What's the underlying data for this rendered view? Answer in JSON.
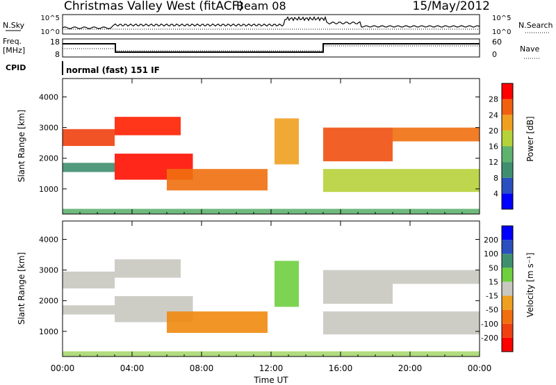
{
  "header": {
    "station": "Christmas Valley West (fitACF)",
    "beam": "Beam 08",
    "date": "15/May/2012"
  },
  "status_panels": {
    "nsky_label": "N.Sky",
    "nsky_ticks": [
      "10^5",
      "10^0"
    ],
    "nsearch_label": "N.Search",
    "nsearch_ticks": [
      "10^5",
      "10^0"
    ],
    "freq_label": "Freq.",
    "freq_unit": "[MHz]",
    "freq_ticks": [
      "18",
      "8"
    ],
    "nave_label": "Nave",
    "nave_ticks": [
      "60",
      "0"
    ],
    "cpid_label": "CPID",
    "cpid_value": "normal (fast) 151 IF"
  },
  "chart_data": [
    {
      "type": "heatmap",
      "panel": "power",
      "ylabel": "Slant Range [km]",
      "yticks": [
        "4000",
        "3000",
        "2000",
        "1000"
      ],
      "ylim": [
        180,
        4600
      ],
      "xlabel": "Time UT",
      "xticks": [
        "00:00",
        "04:00",
        "08:00",
        "12:00",
        "16:00",
        "20:00",
        "00:00"
      ],
      "xlim_hours": [
        0,
        24
      ],
      "colorbar": {
        "label": "Power [dB]",
        "ticks": [
          "28",
          "24",
          "20",
          "16",
          "12",
          "8",
          "4"
        ],
        "colors": [
          "#0000ff",
          "#2a4fbf",
          "#3f8f6f",
          "#5fb36f",
          "#b6d23a",
          "#f0a020",
          "#f06010",
          "#ff0000"
        ]
      },
      "bands": [
        {
          "t0": 0.0,
          "t1": 3.0,
          "r0": 2400,
          "r1": 2950,
          "color": "#f04010"
        },
        {
          "t0": 0.0,
          "t1": 3.0,
          "r0": 1550,
          "r1": 1850,
          "color": "#3f8f6f"
        },
        {
          "t0": 3.0,
          "t1": 6.8,
          "r0": 2750,
          "r1": 3350,
          "color": "#ff2000"
        },
        {
          "t0": 3.0,
          "t1": 7.5,
          "r0": 1300,
          "r1": 2150,
          "color": "#ff1000"
        },
        {
          "t0": 6.0,
          "t1": 11.8,
          "r0": 950,
          "r1": 1650,
          "color": "#f07010"
        },
        {
          "t0": 12.2,
          "t1": 13.6,
          "r0": 1800,
          "r1": 3300,
          "color": "#f0a020"
        },
        {
          "t0": 15.0,
          "t1": 19.0,
          "r0": 1900,
          "r1": 3000,
          "color": "#f05010"
        },
        {
          "t0": 19.0,
          "t1": 24.0,
          "r0": 2550,
          "r1": 3000,
          "color": "#f07010"
        },
        {
          "t0": 15.0,
          "t1": 24.0,
          "r0": 900,
          "r1": 1650,
          "color": "#b6d23a"
        },
        {
          "t0": 0.0,
          "t1": 24.0,
          "r0": 190,
          "r1": 350,
          "color": "#5fb36f"
        }
      ]
    },
    {
      "type": "heatmap",
      "panel": "velocity",
      "ylabel": "Slant Range [km]",
      "yticks": [
        "4000",
        "3000",
        "2000",
        "1000"
      ],
      "ylim": [
        180,
        4600
      ],
      "xlabel": "Time UT",
      "xticks": [
        "00:00",
        "04:00",
        "08:00",
        "12:00",
        "16:00",
        "20:00",
        "00:00"
      ],
      "xlim_hours": [
        0,
        24
      ],
      "colorbar": {
        "label": "Velocity [m s⁻¹]",
        "ticks": [
          "200",
          "100",
          "50",
          "15",
          "-15",
          "-50",
          "-100",
          "-200"
        ],
        "colors": [
          "#ff0000",
          "#f04010",
          "#f07010",
          "#f0a020",
          "#c8c8c0",
          "#6fcf3f",
          "#3f8f6f",
          "#2a4fbf",
          "#0000ff"
        ]
      },
      "bands": [
        {
          "t0": 0.0,
          "t1": 3.0,
          "r0": 2400,
          "r1": 2950,
          "color": "#c8c8c0"
        },
        {
          "t0": 0.0,
          "t1": 3.0,
          "r0": 1550,
          "r1": 1850,
          "color": "#c8c8c0"
        },
        {
          "t0": 3.0,
          "t1": 6.8,
          "r0": 2750,
          "r1": 3350,
          "color": "#c8c8c0"
        },
        {
          "t0": 3.0,
          "t1": 7.5,
          "r0": 1300,
          "r1": 2150,
          "color": "#c8c8c0"
        },
        {
          "t0": 6.0,
          "t1": 11.8,
          "r0": 950,
          "r1": 1650,
          "color": "#f08a10"
        },
        {
          "t0": 12.2,
          "t1": 13.6,
          "r0": 1800,
          "r1": 3300,
          "color": "#6fcf3f"
        },
        {
          "t0": 15.0,
          "t1": 19.0,
          "r0": 1900,
          "r1": 3000,
          "color": "#c8c8c0"
        },
        {
          "t0": 19.0,
          "t1": 24.0,
          "r0": 2550,
          "r1": 3000,
          "color": "#c8c8c0"
        },
        {
          "t0": 15.0,
          "t1": 24.0,
          "r0": 900,
          "r1": 1650,
          "color": "#c8c8c0"
        },
        {
          "t0": 0.0,
          "t1": 24.0,
          "r0": 190,
          "r1": 350,
          "color": "#a8d870"
        }
      ]
    }
  ]
}
